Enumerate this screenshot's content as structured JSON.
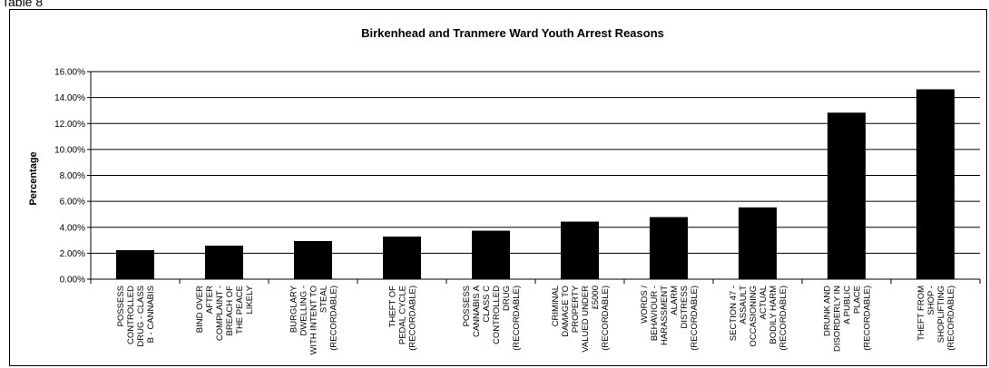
{
  "caption": "Table 8",
  "chart_data": {
    "type": "bar",
    "title": "Birkenhead and Tranmere Ward Youth Arrest Reasons",
    "xlabel": "",
    "ylabel": "Percentage",
    "ylim": [
      0,
      16
    ],
    "yticks": [
      "0.00%",
      "2.00%",
      "4.00%",
      "6.00%",
      "8.00%",
      "10.00%",
      "12.00%",
      "14.00%",
      "16.00%"
    ],
    "grid": true,
    "legend": "none",
    "bar_color": "#000000",
    "categories": [
      [
        "POSSESS",
        "CONTROLLED",
        "DRUG - CLASS",
        "B - CANNABIS"
      ],
      [
        "BIND OVER",
        "AFTER",
        "COMPLAINT -",
        "BREACH OF",
        "THE PEACE",
        "LIKELY"
      ],
      [
        "BURGLARY",
        "DWELLING -",
        "WITH INTENT TO",
        "STEAL",
        "(RECORDABLE)"
      ],
      [
        "THEFT OF",
        "PEDAL CYCLE",
        "(RECORDABLE)"
      ],
      [
        "POSSESS",
        "CANNABIS A",
        "CLASS C",
        "CONTROLLED",
        "DRUG",
        "(RECORDABLE)"
      ],
      [
        "CRIMINAL",
        "DAMAGE TO",
        "PROPERTY",
        "VALUED UNDER",
        "£5000",
        "(RECORDABLE)"
      ],
      [
        "WORDS /",
        "BEHAVIOUR -",
        "HARASSMENT",
        "ALARM",
        "DISTRESS",
        "(RECORDABLE)"
      ],
      [
        "SECTION 47 -",
        "ASSAULT",
        "OCCASIONING",
        "ACTUAL",
        "BODILY HARM",
        "(RECORDABLE)"
      ],
      [
        "DRUNK AND",
        "DISORDERLY IN",
        "A PUBLIC",
        "PLACE",
        "(RECORDABLE)"
      ],
      [
        "THEFT FROM",
        "SHOP -",
        "SHOPLIFTING",
        "(RECORDABLE)"
      ]
    ],
    "values": [
      2.2,
      2.55,
      2.9,
      3.25,
      3.7,
      4.4,
      4.75,
      5.5,
      12.8,
      14.6
    ]
  }
}
